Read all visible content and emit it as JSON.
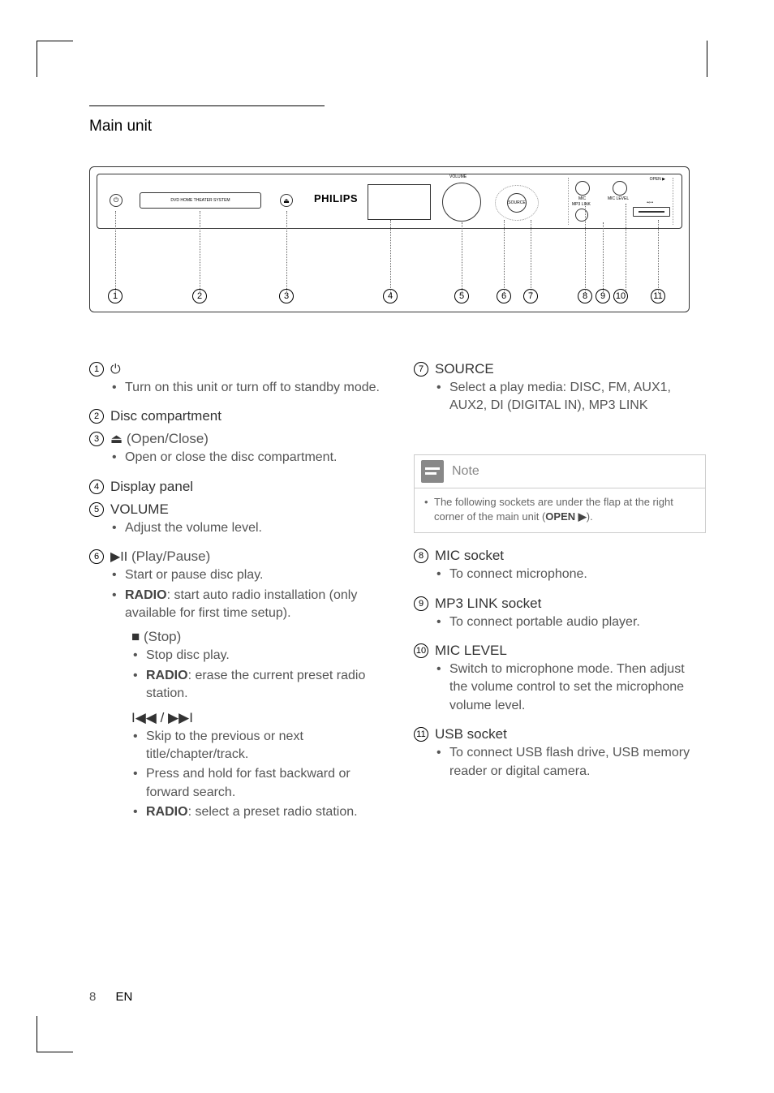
{
  "page": {
    "number": "8",
    "lang": "EN"
  },
  "section_title": "Main unit",
  "diagram": {
    "brand": "PHILIPS",
    "tray_text": "DVD HOME THEATER SYSTEM",
    "volume_label": "VOLUME",
    "source_label": "SOURCE",
    "open_label": "OPEN ▶",
    "mic": "MIC",
    "mic_level": "MIC LEVEL",
    "mp3_link": "MP3 LINK",
    "callouts": [
      "1",
      "2",
      "3",
      "4",
      "5",
      "6",
      "7",
      "8",
      "9",
      "10",
      "11"
    ]
  },
  "left_items": [
    {
      "num": "1",
      "icon": "⏻",
      "title": "",
      "bullets": [
        "Turn on this unit or turn off to standby mode."
      ]
    },
    {
      "num": "2",
      "title": "Disc compartment",
      "bullets": []
    },
    {
      "num": "3",
      "icon": "⏏",
      "title_suffix": "(Open/Close)",
      "bullets": [
        "Open or close the disc compartment."
      ]
    },
    {
      "num": "4",
      "title": "Display panel",
      "bullets": []
    },
    {
      "num": "5",
      "title": "VOLUME",
      "bullets": [
        "Adjust the volume level."
      ]
    },
    {
      "num": "6",
      "icon": "▶II",
      "title_suffix": "(Play/Pause)",
      "bullets_rich": [
        {
          "text": "Start or pause disc play."
        },
        {
          "bold": "RADIO",
          "text": ": start auto radio installation (only available for first time setup)."
        }
      ],
      "sub_sections": [
        {
          "icon": "■",
          "title_suffix": "(Stop)",
          "bullets_rich": [
            {
              "text": "Stop disc play."
            },
            {
              "bold": "RADIO",
              "text": ": erase the current preset radio station."
            }
          ]
        },
        {
          "icon": "I◀◀ / ▶▶I",
          "title_suffix": "",
          "bullets_rich": [
            {
              "text": "Skip to the previous or next title/chapter/track."
            },
            {
              "text": "Press and hold for fast backward or forward search."
            },
            {
              "bold": "RADIO",
              "text": ": select a preset radio station."
            }
          ]
        }
      ]
    }
  ],
  "right_items": [
    {
      "num": "7",
      "title": "SOURCE",
      "bullets": [
        "Select a play media: DISC, FM, AUX1, AUX2, DI (DIGITAL IN), MP3 LINK"
      ]
    }
  ],
  "note": {
    "title": "Note",
    "body_prefix": "The following sockets are under the flap at the right corner of the main unit (",
    "body_bold": "OPEN ▶",
    "body_suffix": ")."
  },
  "right_items_after_note": [
    {
      "num": "8",
      "title": "MIC socket",
      "bullets": [
        "To connect microphone."
      ]
    },
    {
      "num": "9",
      "title": "MP3 LINK socket",
      "bullets": [
        "To connect portable audio player."
      ]
    },
    {
      "num": "10",
      "title": "MIC LEVEL",
      "bullets": [
        "Switch to microphone mode. Then adjust the volume control to set the microphone volume level."
      ]
    },
    {
      "num": "11",
      "title": "USB socket",
      "bullets": [
        "To connect USB flash drive, USB memory reader or digital camera."
      ]
    }
  ]
}
